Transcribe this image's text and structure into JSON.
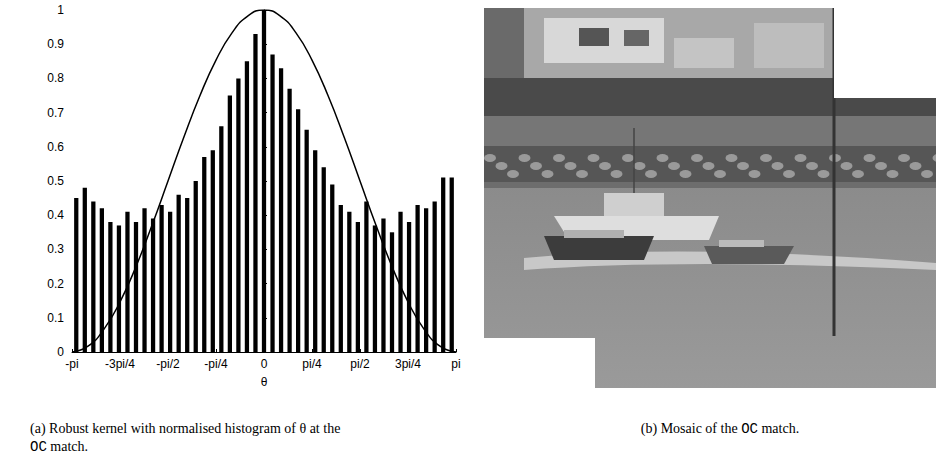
{
  "chart_data": {
    "type": "histogram",
    "xlabel": "θ",
    "color": "#000000",
    "grid": false,
    "xlim": [
      -3.14159,
      3.14159
    ],
    "ylim": [
      0,
      1
    ],
    "xticks": [
      {
        "value": -3.14159,
        "label": "-pi"
      },
      {
        "value": -2.35619,
        "label": "-3pi/4"
      },
      {
        "value": -1.5708,
        "label": "-pi/2"
      },
      {
        "value": -0.7854,
        "label": "-pi/4"
      },
      0,
      {
        "value": 0.7854,
        "label": "pi/4"
      },
      {
        "value": 1.5708,
        "label": "pi/2"
      },
      {
        "value": 2.35619,
        "label": "3pi/4"
      },
      {
        "value": 3.14159,
        "label": "pi"
      }
    ],
    "yticks": [
      0,
      0.1,
      0.2,
      0.3,
      0.4,
      0.5,
      0.6,
      0.7,
      0.8,
      0.9,
      1
    ],
    "bins": [
      -3.14159,
      -3.002,
      -2.8623,
      -2.7227,
      -2.5831,
      -2.4435,
      -2.3038,
      -2.1642,
      -2.0246,
      -1.885,
      -1.7453,
      -1.6057,
      -1.4661,
      -1.3265,
      -1.1868,
      -1.0472,
      -0.9076,
      -0.7679,
      -0.6283,
      -0.4887,
      -0.3491,
      -0.2094,
      -0.0698,
      0.0698,
      0.2094,
      0.3491,
      0.4887,
      0.6283,
      0.7679,
      0.9076,
      1.0472,
      1.1868,
      1.3265,
      1.4661,
      1.6057,
      1.7453,
      1.885,
      2.0246,
      2.1642,
      2.3038,
      2.4435,
      2.5831,
      2.7227,
      2.8623,
      3.002,
      3.14159
    ],
    "counts": [
      0.45,
      0.48,
      0.44,
      0.42,
      0.38,
      0.37,
      0.41,
      0.38,
      0.42,
      0.39,
      0.43,
      0.41,
      0.46,
      0.45,
      0.5,
      0.57,
      0.59,
      0.66,
      0.75,
      0.8,
      0.85,
      0.93,
      1.0,
      0.87,
      0.83,
      0.77,
      0.71,
      0.65,
      0.59,
      0.54,
      0.49,
      0.43,
      0.41,
      0.38,
      0.44,
      0.37,
      0.39,
      0.35,
      0.41,
      0.38,
      0.43,
      0.42,
      0.44,
      0.51,
      0.51
    ],
    "kernel": {
      "x": [
        -3.14159,
        -2.8798,
        -2.618,
        -2.3562,
        -2.0944,
        -1.8326,
        -1.5708,
        -1.309,
        -1.0472,
        -0.7854,
        -0.5236,
        -0.2618,
        0,
        0.2618,
        0.5236,
        0.7854,
        1.0472,
        1.309,
        1.5708,
        1.8326,
        2.0944,
        2.3562,
        2.618,
        2.8798,
        3.14159
      ],
      "y": [
        0,
        0.017,
        0.067,
        0.1464,
        0.25,
        0.3706,
        0.5,
        0.6294,
        0.75,
        0.8536,
        0.933,
        0.983,
        1,
        0.983,
        0.933,
        0.8536,
        0.75,
        0.6294,
        0.5,
        0.3706,
        0.25,
        0.1464,
        0.067,
        0.017,
        0
      ]
    }
  },
  "captions": [
    {
      "label": "(a)",
      "parts": [
        "Robust kernel with normalised histogram of θ at the ",
        "OC",
        " match."
      ]
    },
    {
      "label": "(b)",
      "parts": [
        "Mosaic of the ",
        "OC",
        " match."
      ]
    }
  ]
}
